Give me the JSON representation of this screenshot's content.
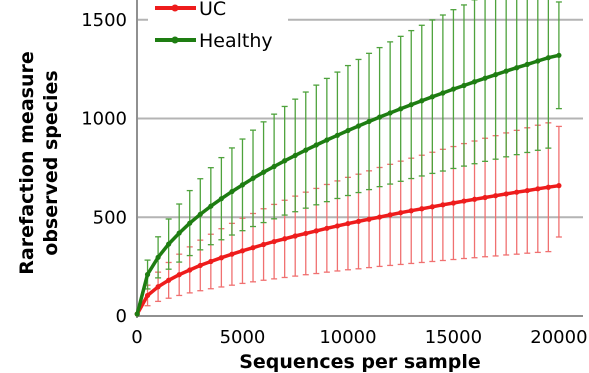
{
  "chart_data": {
    "type": "line",
    "title": "",
    "xlabel": "Sequences per sample",
    "ylabel_lines": [
      "Rarefaction measure",
      "observed species"
    ],
    "xlim": [
      0,
      21000
    ],
    "ylim": [
      0,
      1600
    ],
    "x_ticks": [
      0,
      5000,
      10000,
      15000,
      20000
    ],
    "x_tick_labels": [
      "0",
      "5000",
      "10000",
      "15000",
      "20000"
    ],
    "y_ticks": [
      0,
      500,
      1000,
      1500
    ],
    "y_tick_labels": [
      "0",
      "500",
      "1000",
      "1500"
    ],
    "grid": "horizontal",
    "legend": "top-left",
    "x": [
      10,
      500,
      1000,
      1500,
      2000,
      2500,
      3000,
      3500,
      4000,
      4500,
      5000,
      5500,
      6000,
      6500,
      7000,
      7500,
      8000,
      8500,
      9000,
      9500,
      10000,
      10500,
      11000,
      11500,
      12000,
      12500,
      13000,
      13500,
      14000,
      14500,
      15000,
      15500,
      16000,
      16500,
      17000,
      17500,
      18000,
      18500,
      19000,
      19500,
      20000
    ],
    "series": [
      {
        "name": "UC",
        "color": "#ee1c1c",
        "values": [
          10,
          104,
          148,
          181,
          209,
          233,
          256,
          276,
          295,
          313,
          330,
          346,
          362,
          377,
          391,
          405,
          418,
          431,
          444,
          456,
          468,
          479,
          490,
          501,
          512,
          523,
          533,
          543,
          553,
          563,
          572,
          582,
          591,
          600,
          609,
          618,
          627,
          635,
          644,
          652,
          660
        ],
        "err_low": [
          10,
          52,
          74,
          90,
          104,
          117,
          128,
          138,
          147,
          156,
          165,
          173,
          181,
          188,
          195,
          202,
          209,
          215,
          222,
          228,
          234,
          239,
          245,
          251,
          256,
          261,
          266,
          271,
          276,
          281,
          286,
          291,
          295,
          300,
          304,
          309,
          313,
          318,
          322,
          326,
          400
        ],
        "err_high": [
          10,
          156,
          222,
          271,
          313,
          350,
          384,
          414,
          442,
          469,
          495,
          519,
          543,
          565,
          586,
          607,
          627,
          646,
          666,
          684,
          702,
          718,
          735,
          752,
          768,
          784,
          799,
          814,
          829,
          844,
          858,
          873,
          886,
          900,
          913,
          927,
          940,
          953,
          966,
          978,
          960
        ]
      },
      {
        "name": "Healthy",
        "color": "#1e7d12",
        "values": [
          10,
          210,
          297,
          364,
          420,
          470,
          515,
          556,
          594,
          630,
          664,
          697,
          728,
          757,
          786,
          813,
          840,
          866,
          891,
          915,
          939,
          962,
          985,
          1007,
          1028,
          1049,
          1070,
          1090,
          1110,
          1129,
          1149,
          1167,
          1186,
          1204,
          1222,
          1240,
          1257,
          1274,
          1291,
          1308,
          1320
        ],
        "err_low": [
          10,
          137,
          193,
          237,
          273,
          306,
          335,
          361,
          386,
          410,
          432,
          453,
          473,
          492,
          511,
          528,
          546,
          563,
          579,
          595,
          610,
          625,
          640,
          655,
          668,
          682,
          696,
          709,
          722,
          734,
          747,
          759,
          771,
          783,
          794,
          806,
          817,
          828,
          839,
          850,
          1050
        ],
        "err_high": [
          10,
          283,
          401,
          491,
          567,
          635,
          695,
          751,
          802,
          851,
          896,
          941,
          983,
          1022,
          1061,
          1098,
          1134,
          1169,
          1203,
          1235,
          1268,
          1299,
          1330,
          1359,
          1388,
          1416,
          1445,
          1472,
          1499,
          1524,
          1551,
          1575,
          1601,
          1625,
          1650,
          1674,
          1697,
          1720,
          1743,
          1766,
          1590
        ]
      }
    ]
  }
}
